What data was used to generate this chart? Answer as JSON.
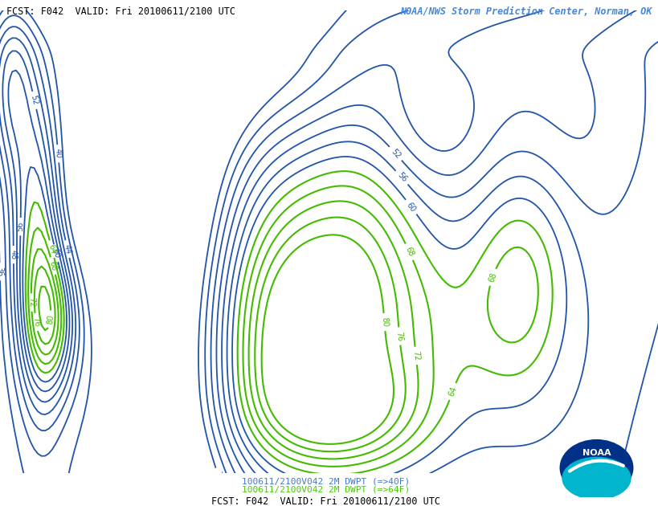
{
  "title_top_left": "FCST: F042  VALID: Fri 20100611/2100 UTC",
  "title_top_right": "NOAA/NWS Storm Prediction Center, Norman, OK",
  "title_bottom": "FCST: F042  VALID: Fri 20100611/2100 UTC",
  "legend_line1": "100611/2100V042 2M DWPT (=>40F)",
  "legend_line2": "100611/2100V042 2M DWPT (=>64F)",
  "legend_color1": "#4477cc",
  "legend_color2": "#44cc00",
  "title_top_left_color": "#000000",
  "title_top_right_color": "#4488dd",
  "background_color": "#ffffff",
  "blue_contour_color": "#2255aa",
  "green_contour_color": "#44bb00",
  "figsize": [
    8.2,
    6.3
  ],
  "dpi": 100
}
